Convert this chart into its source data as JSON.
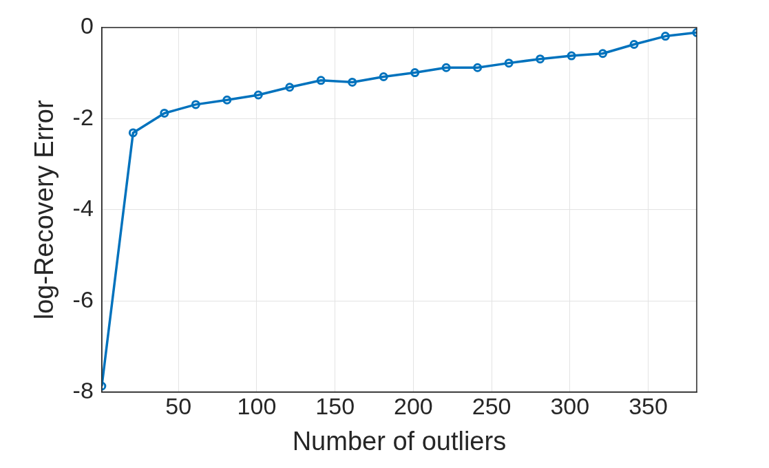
{
  "chart_data": {
    "type": "line",
    "xlabel": "Number of outliers",
    "ylabel": "log-Recovery Error",
    "x": [
      1,
      21,
      41,
      61,
      81,
      101,
      121,
      141,
      161,
      181,
      201,
      221,
      241,
      261,
      281,
      301,
      321,
      341,
      361,
      381
    ],
    "series": [
      {
        "color": "#0072bd",
        "values": [
          -7.87,
          -2.31,
          -1.88,
          -1.69,
          -1.59,
          -1.48,
          -1.31,
          -1.16,
          -1.2,
          -1.08,
          -0.99,
          -0.88,
          -0.88,
          -0.78,
          -0.69,
          -0.62,
          -0.57,
          -0.37,
          -0.19,
          -0.11
        ]
      }
    ],
    "xlim": [
      1,
      381
    ],
    "xticks": [
      50,
      100,
      150,
      200,
      250,
      300,
      350
    ],
    "ylim": [
      -8,
      0
    ],
    "yticks": [
      -8,
      -6,
      -4,
      -2,
      0
    ],
    "grid": true,
    "legend": false,
    "marker": "circle",
    "line_style": "solid"
  }
}
